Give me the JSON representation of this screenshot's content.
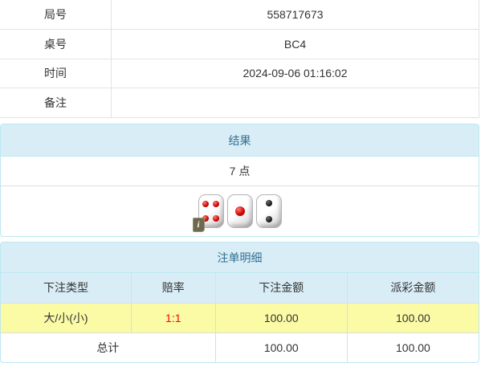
{
  "info_table": {
    "rows": [
      {
        "label": "局号",
        "value": "558717673"
      },
      {
        "label": "桌号",
        "value": "BC4"
      },
      {
        "label": "时间",
        "value": "2024-09-06 01:16:02"
      },
      {
        "label": "备注",
        "value": ""
      }
    ]
  },
  "result_panel": {
    "title": "结果",
    "points": "7 点",
    "dice": [
      {
        "value": 4,
        "color": "red"
      },
      {
        "value": 1,
        "color": "red"
      },
      {
        "value": 2,
        "color": "black"
      }
    ],
    "info_badge": "i"
  },
  "bets_panel": {
    "title": "注单明细",
    "columns": [
      "下注类型",
      "赔率",
      "下注金额",
      "派彩金额"
    ],
    "rows": [
      {
        "bet_type": "大/小(小)",
        "odds": "1:1",
        "bet_amount": "100.00",
        "payout": "100.00",
        "highlight": true
      }
    ],
    "total": {
      "label": "总计",
      "bet_amount": "100.00",
      "payout": "100.00"
    }
  },
  "colors": {
    "panel_header_bg": "#d9edf7",
    "panel_border": "#bce8f1",
    "heading_text": "#31708f",
    "highlight_row_bg": "#fbfba6",
    "odds_text": "#ff0000",
    "body_text": "#333333",
    "grid_border": "#dddddd"
  }
}
